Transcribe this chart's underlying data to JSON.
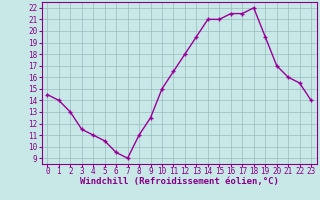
{
  "x": [
    0,
    1,
    2,
    3,
    4,
    5,
    6,
    7,
    8,
    9,
    10,
    11,
    12,
    13,
    14,
    15,
    16,
    17,
    18,
    19,
    20,
    21,
    22,
    23
  ],
  "y": [
    14.5,
    14.0,
    13.0,
    11.5,
    11.0,
    10.5,
    9.5,
    9.0,
    11.0,
    12.5,
    15.0,
    16.5,
    18.0,
    19.5,
    21.0,
    21.0,
    21.5,
    21.5,
    22.0,
    19.5,
    17.0,
    16.0,
    15.5,
    14.0
  ],
  "line_color": "#990099",
  "marker": "+",
  "bg_color": "#c8e8e8",
  "grid_color": "#99bbbb",
  "xlabel": "Windchill (Refroidissement éolien,°C)",
  "xlim": [
    -0.5,
    23.5
  ],
  "ylim": [
    8.5,
    22.5
  ],
  "yticks": [
    9,
    10,
    11,
    12,
    13,
    14,
    15,
    16,
    17,
    18,
    19,
    20,
    21,
    22
  ],
  "xticks": [
    0,
    1,
    2,
    3,
    4,
    5,
    6,
    7,
    8,
    9,
    10,
    11,
    12,
    13,
    14,
    15,
    16,
    17,
    18,
    19,
    20,
    21,
    22,
    23
  ],
  "tick_color": "#880088",
  "label_color": "#880088",
  "xlabel_fontsize": 6.5,
  "tick_fontsize": 5.5,
  "spine_color": "#880088",
  "linewidth": 1.0,
  "markersize": 3.5
}
